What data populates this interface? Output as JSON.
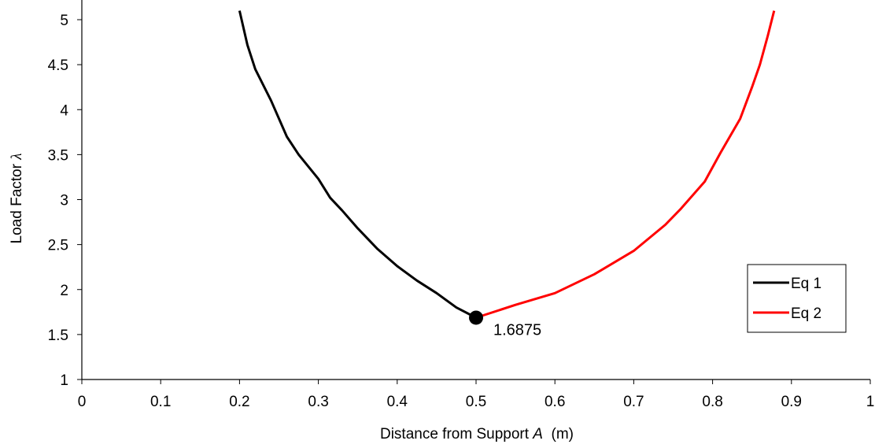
{
  "chart_data": {
    "type": "line",
    "title": "",
    "xlabel_prefix": "Distance from Support ",
    "xlabel_italic": "A",
    "xlabel_suffix": "  (m)",
    "ylabel_prefix": "Load Factor ",
    "ylabel_italic": "λ",
    "xlim": [
      0,
      1
    ],
    "ylim": [
      1,
      5
    ],
    "xticks": [
      "0",
      "0.1",
      "0.2",
      "0.3",
      "0.4",
      "0.5",
      "0.6",
      "0.7",
      "0.8",
      "0.9",
      "1"
    ],
    "yticks": [
      "1",
      "1.5",
      "2",
      "2.5",
      "3",
      "3.5",
      "4",
      "4.5",
      "5"
    ],
    "grid": false,
    "legend_position": "right",
    "series": [
      {
        "name": "Eq 1",
        "color": "#000000",
        "points": [
          [
            0.2,
            5.1
          ],
          [
            0.21,
            4.72
          ],
          [
            0.22,
            4.45
          ],
          [
            0.24,
            4.1
          ],
          [
            0.26,
            3.7
          ],
          [
            0.275,
            3.5
          ],
          [
            0.3,
            3.23
          ],
          [
            0.315,
            3.02
          ],
          [
            0.33,
            2.88
          ],
          [
            0.35,
            2.68
          ],
          [
            0.375,
            2.45
          ],
          [
            0.4,
            2.26
          ],
          [
            0.425,
            2.1
          ],
          [
            0.45,
            1.96
          ],
          [
            0.475,
            1.8
          ],
          [
            0.5,
            1.6875
          ]
        ]
      },
      {
        "name": "Eq 2",
        "color": "#ff0000",
        "points": [
          [
            0.5,
            1.6875
          ],
          [
            0.55,
            1.83
          ],
          [
            0.6,
            1.96
          ],
          [
            0.65,
            2.17
          ],
          [
            0.7,
            2.43
          ],
          [
            0.74,
            2.72
          ],
          [
            0.76,
            2.9
          ],
          [
            0.79,
            3.2
          ],
          [
            0.81,
            3.52
          ],
          [
            0.835,
            3.9
          ],
          [
            0.85,
            4.25
          ],
          [
            0.86,
            4.5
          ],
          [
            0.87,
            4.82
          ],
          [
            0.878,
            5.1
          ]
        ]
      }
    ],
    "marker": {
      "x": 0.5,
      "y": 1.6875,
      "label": "1.6875",
      "color": "#000000"
    }
  }
}
